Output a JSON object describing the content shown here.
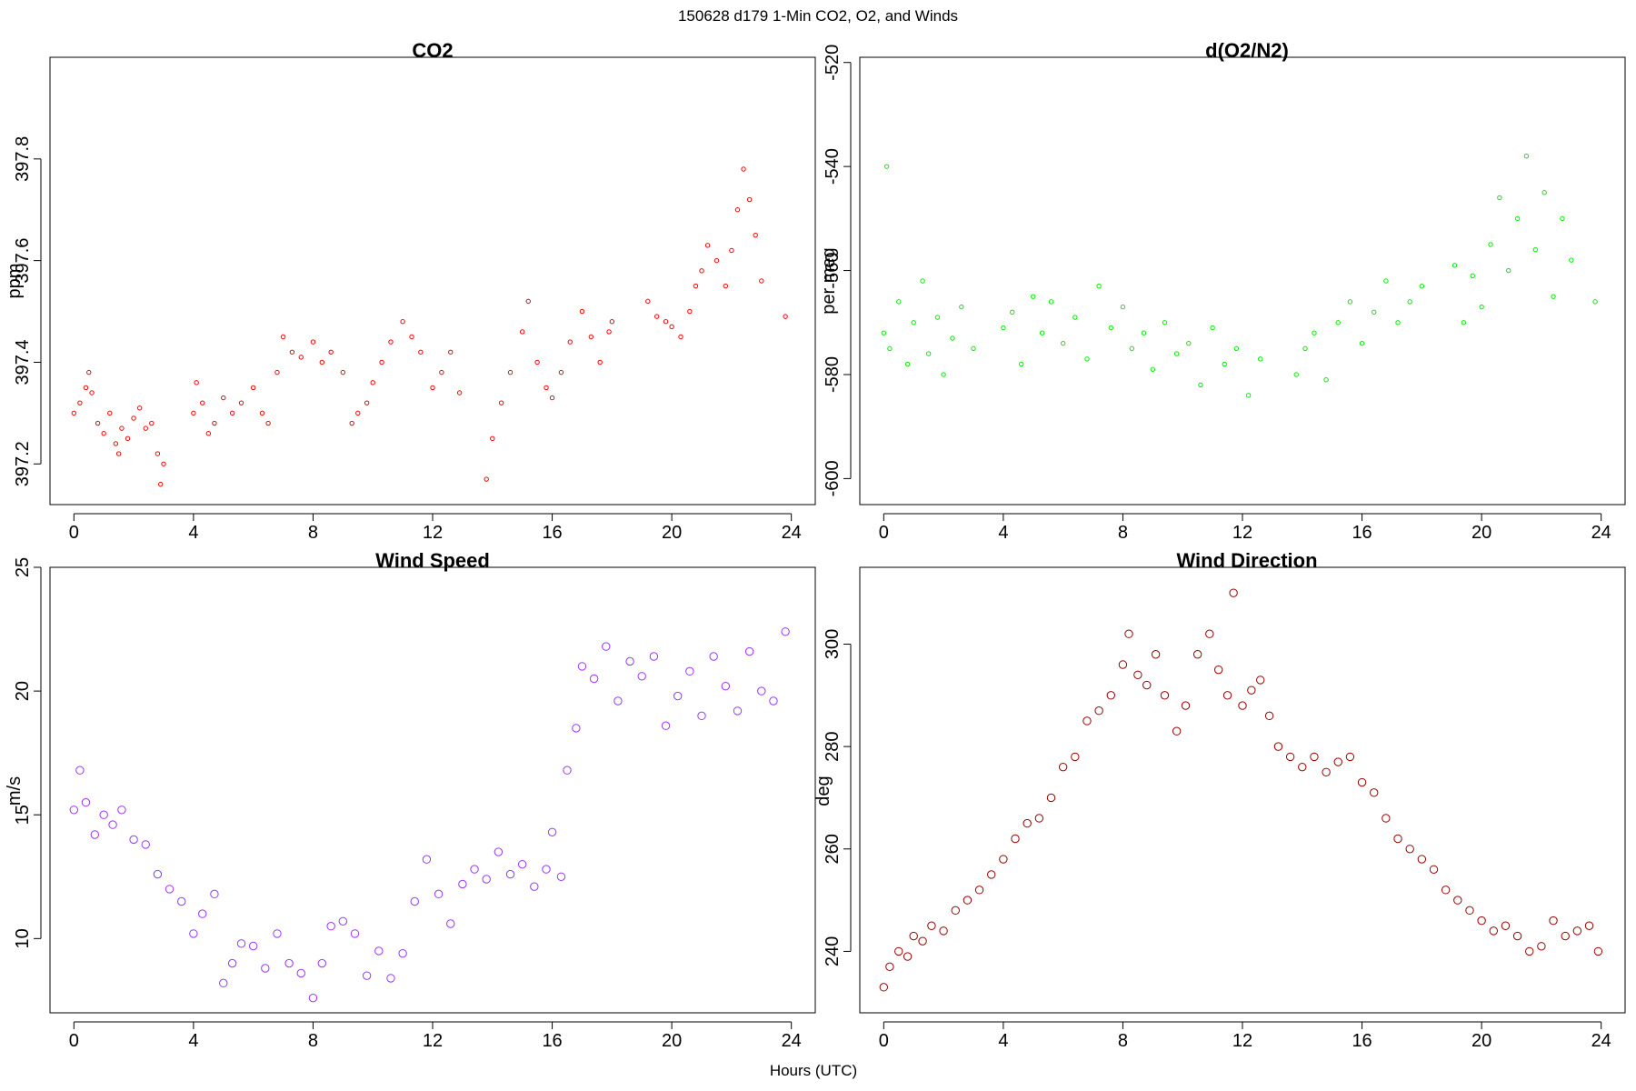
{
  "figure": {
    "title": "150628   d179   1-Min CO2, O2, and Winds",
    "xlabel": "Hours (UTC)"
  },
  "chart_data": [
    {
      "id": "co2",
      "type": "scatter",
      "title": "CO2",
      "xlabel": "",
      "ylabel": "ppm",
      "xlim": [
        -0.8,
        24.8
      ],
      "ylim": [
        397.12,
        398.0
      ],
      "xticks": [
        0,
        4,
        8,
        12,
        16,
        20,
        24
      ],
      "yticks": [
        397.2,
        397.4,
        397.6,
        397.8
      ],
      "color": "#ff0000",
      "marker_size": 2.2,
      "x": [
        0.0,
        0.2,
        0.4,
        0.5,
        0.6,
        0.8,
        1.0,
        1.2,
        1.4,
        1.5,
        1.6,
        1.8,
        2.0,
        2.2,
        2.4,
        2.6,
        2.8,
        2.9,
        3.0,
        4.0,
        4.1,
        4.3,
        4.5,
        4.7,
        5.0,
        5.3,
        5.6,
        6.0,
        6.3,
        6.5,
        6.8,
        7.0,
        7.3,
        7.6,
        8.0,
        8.3,
        8.6,
        9.0,
        9.3,
        9.5,
        9.8,
        10.0,
        10.3,
        10.6,
        11.0,
        11.3,
        11.6,
        12.0,
        12.3,
        12.6,
        12.9,
        13.8,
        14.0,
        14.3,
        14.6,
        15.0,
        15.2,
        15.5,
        15.8,
        16.0,
        16.3,
        16.6,
        17.0,
        17.3,
        17.6,
        17.9,
        18.0,
        19.2,
        19.5,
        19.8,
        20.0,
        20.3,
        20.6,
        20.8,
        21.0,
        21.2,
        21.5,
        21.8,
        22.0,
        22.2,
        22.4,
        22.6,
        22.8,
        23.0,
        23.8
      ],
      "y": [
        397.3,
        397.32,
        397.35,
        397.38,
        397.34,
        397.28,
        397.26,
        397.3,
        397.24,
        397.22,
        397.27,
        397.25,
        397.29,
        397.31,
        397.27,
        397.28,
        397.22,
        397.16,
        397.2,
        397.3,
        397.36,
        397.32,
        397.26,
        397.28,
        397.33,
        397.3,
        397.32,
        397.35,
        397.3,
        397.28,
        397.38,
        397.45,
        397.42,
        397.41,
        397.44,
        397.4,
        397.42,
        397.38,
        397.28,
        397.3,
        397.32,
        397.36,
        397.4,
        397.44,
        397.48,
        397.45,
        397.42,
        397.35,
        397.38,
        397.42,
        397.34,
        397.17,
        397.25,
        397.32,
        397.38,
        397.46,
        397.52,
        397.4,
        397.35,
        397.33,
        397.38,
        397.44,
        397.5,
        397.45,
        397.4,
        397.46,
        397.48,
        397.52,
        397.49,
        397.48,
        397.47,
        397.45,
        397.5,
        397.55,
        397.58,
        397.63,
        397.6,
        397.55,
        397.62,
        397.7,
        397.78,
        397.72,
        397.65,
        397.56,
        397.49
      ]
    },
    {
      "id": "o2",
      "type": "scatter",
      "title": "d(O2/N2)",
      "xlabel": "",
      "ylabel": "per meg",
      "xlim": [
        -0.8,
        24.8
      ],
      "ylim": [
        -605,
        -519
      ],
      "xticks": [
        0,
        4,
        8,
        12,
        16,
        20,
        24
      ],
      "yticks": [
        -600,
        -580,
        -560,
        -540,
        -520
      ],
      "color": "#00ee00",
      "marker_size": 2.2,
      "x": [
        0.0,
        0.1,
        0.2,
        0.5,
        0.8,
        1.0,
        1.3,
        1.5,
        1.8,
        2.0,
        2.3,
        2.6,
        3.0,
        4.0,
        4.3,
        4.6,
        5.0,
        5.3,
        5.6,
        6.0,
        6.4,
        6.8,
        7.2,
        7.6,
        8.0,
        8.3,
        8.7,
        9.0,
        9.4,
        9.8,
        10.2,
        10.6,
        11.0,
        11.4,
        11.8,
        12.2,
        12.6,
        13.8,
        14.1,
        14.4,
        14.8,
        15.2,
        15.6,
        16.0,
        16.4,
        16.8,
        17.2,
        17.6,
        18.0,
        19.1,
        19.4,
        19.7,
        20.0,
        20.3,
        20.6,
        20.9,
        21.2,
        21.5,
        21.8,
        22.1,
        22.4,
        22.7,
        23.0,
        23.8
      ],
      "y": [
        -572,
        -540,
        -575,
        -566,
        -578,
        -570,
        -562,
        -576,
        -569,
        -580,
        -573,
        -567,
        -575,
        -571,
        -568,
        -578,
        -565,
        -572,
        -566,
        -574,
        -569,
        -577,
        -563,
        -571,
        -567,
        -575,
        -572,
        -579,
        -570,
        -576,
        -574,
        -582,
        -571,
        -578,
        -575,
        -584,
        -577,
        -580,
        -575,
        -572,
        -581,
        -570,
        -566,
        -574,
        -568,
        -562,
        -570,
        -566,
        -563,
        -559,
        -570,
        -561,
        -567,
        -555,
        -546,
        -560,
        -550,
        -538,
        -556,
        -545,
        -565,
        -550,
        -558,
        -566
      ]
    },
    {
      "id": "wind-speed",
      "type": "scatter",
      "title": "Wind Speed",
      "xlabel": "",
      "ylabel": "m/s",
      "xlim": [
        -0.8,
        24.8
      ],
      "ylim": [
        7.0,
        25.0
      ],
      "xticks": [
        0,
        4,
        8,
        12,
        16,
        20,
        24
      ],
      "yticks": [
        10,
        15,
        20,
        25
      ],
      "color": "#9933ff",
      "marker_size": 4.2,
      "x": [
        0.0,
        0.2,
        0.4,
        0.7,
        1.0,
        1.3,
        1.6,
        2.0,
        2.4,
        2.8,
        3.2,
        3.6,
        4.0,
        4.3,
        4.7,
        5.0,
        5.3,
        5.6,
        6.0,
        6.4,
        6.8,
        7.2,
        7.6,
        8.0,
        8.3,
        8.6,
        9.0,
        9.4,
        9.8,
        10.2,
        10.6,
        11.0,
        11.4,
        11.8,
        12.2,
        12.6,
        13.0,
        13.4,
        13.8,
        14.2,
        14.6,
        15.0,
        15.4,
        15.8,
        16.0,
        16.3,
        16.5,
        16.8,
        17.0,
        17.4,
        17.8,
        18.2,
        18.6,
        19.0,
        19.4,
        19.8,
        20.2,
        20.6,
        21.0,
        21.4,
        21.8,
        22.2,
        22.6,
        23.0,
        23.4,
        23.8
      ],
      "y": [
        15.2,
        16.8,
        15.5,
        14.2,
        15.0,
        14.6,
        15.2,
        14.0,
        13.8,
        12.6,
        12.0,
        11.5,
        10.2,
        11.0,
        11.8,
        8.2,
        9.0,
        9.8,
        9.7,
        8.8,
        10.2,
        9.0,
        8.6,
        7.6,
        9.0,
        10.5,
        10.7,
        10.2,
        8.5,
        9.5,
        8.4,
        9.4,
        11.5,
        13.2,
        11.8,
        10.6,
        12.2,
        12.8,
        12.4,
        13.5,
        12.6,
        13.0,
        12.1,
        12.8,
        14.3,
        12.5,
        16.8,
        18.5,
        21.0,
        20.5,
        21.8,
        19.6,
        21.2,
        20.6,
        21.4,
        18.6,
        19.8,
        20.8,
        19.0,
        21.4,
        20.2,
        19.2,
        21.6,
        20.0,
        19.6,
        22.4
      ]
    },
    {
      "id": "wind-direction",
      "type": "scatter",
      "title": "Wind Direction",
      "xlabel": "",
      "ylabel": "deg",
      "xlim": [
        -0.8,
        24.8
      ],
      "ylim": [
        228,
        315
      ],
      "xticks": [
        0,
        4,
        8,
        12,
        16,
        20,
        24
      ],
      "yticks": [
        240,
        260,
        280,
        300
      ],
      "color": "#990000",
      "marker_size": 4.2,
      "x": [
        0.0,
        0.2,
        0.5,
        0.8,
        1.0,
        1.3,
        1.6,
        2.0,
        2.4,
        2.8,
        3.2,
        3.6,
        4.0,
        4.4,
        4.8,
        5.2,
        5.6,
        6.0,
        6.4,
        6.8,
        7.2,
        7.6,
        8.0,
        8.2,
        8.5,
        8.8,
        9.1,
        9.4,
        9.8,
        10.1,
        10.5,
        10.9,
        11.2,
        11.5,
        11.7,
        12.0,
        12.3,
        12.6,
        12.9,
        13.2,
        13.6,
        14.0,
        14.4,
        14.8,
        15.2,
        15.6,
        16.0,
        16.4,
        16.8,
        17.2,
        17.6,
        18.0,
        18.4,
        18.8,
        19.2,
        19.6,
        20.0,
        20.4,
        20.8,
        21.2,
        21.6,
        22.0,
        22.4,
        22.8,
        23.2,
        23.6,
        23.9
      ],
      "y": [
        233,
        237,
        240,
        239,
        243,
        242,
        245,
        244,
        248,
        250,
        252,
        255,
        258,
        262,
        265,
        266,
        270,
        276,
        278,
        285,
        287,
        290,
        296,
        302,
        294,
        292,
        298,
        290,
        283,
        288,
        298,
        302,
        295,
        290,
        310,
        288,
        291,
        293,
        286,
        280,
        278,
        276,
        278,
        275,
        277,
        278,
        273,
        271,
        266,
        262,
        260,
        258,
        256,
        252,
        250,
        248,
        246,
        244,
        245,
        243,
        240,
        241,
        246,
        243,
        244,
        245,
        240
      ]
    }
  ]
}
